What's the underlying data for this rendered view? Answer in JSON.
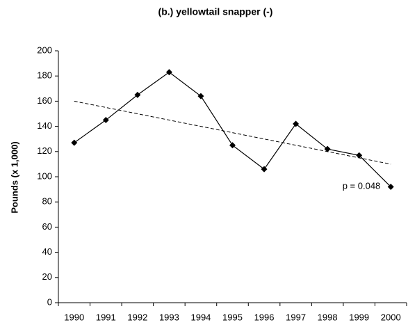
{
  "chart_data": {
    "type": "line",
    "title": "(b.) yellowtail snapper (-)",
    "y_label": "Pounds (x 1,000)",
    "categories": [
      "1990",
      "1991",
      "1992",
      "1993",
      "1994",
      "1995",
      "1996",
      "1997",
      "1998",
      "1999",
      "2000"
    ],
    "values": [
      127,
      145,
      165,
      183,
      164,
      125,
      106,
      142,
      122,
      117,
      92
    ],
    "color": "#000000",
    "trendline": {
      "start": 160,
      "end": 110
    },
    "annotation": "p = 0.048",
    "ylim": [
      0,
      200
    ],
    "yticks": [
      0,
      20,
      40,
      60,
      80,
      100,
      120,
      140,
      160,
      180,
      200
    ],
    "grid": false
  }
}
